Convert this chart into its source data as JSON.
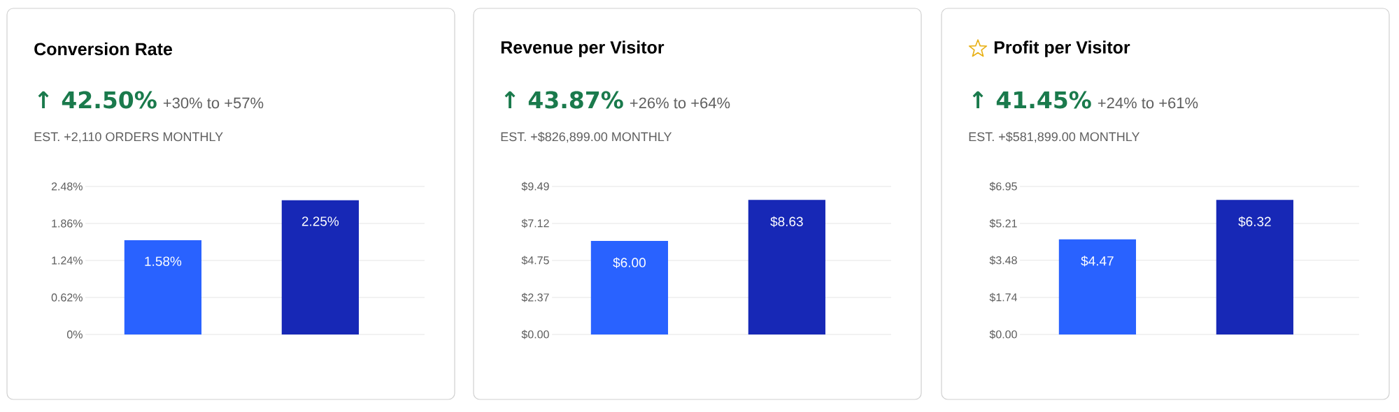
{
  "chart_data": [
    {
      "type": "bar",
      "title": "Conversion Rate",
      "subtitle": "↑ 42.50%",
      "annotations": [
        "+30% to +57%",
        "EST. +2,110 ORDERS MONTHLY"
      ],
      "categories": [
        null,
        null
      ],
      "values": [
        1.58,
        2.25
      ],
      "value_labels": [
        "1.58%",
        "2.25%"
      ],
      "colors": [
        "#2962ff",
        "#1728b6"
      ],
      "ylim": [
        0,
        2.48
      ],
      "yticks": [
        {
          "value": 0,
          "label": "0%"
        },
        {
          "value": 0.62,
          "label": "0.62%"
        },
        {
          "value": 1.24,
          "label": "1.24%"
        },
        {
          "value": 1.86,
          "label": "1.86%"
        },
        {
          "value": 2.48,
          "label": "2.48%"
        }
      ],
      "grid": "y",
      "tick_labels": "y"
    },
    {
      "type": "bar",
      "title": "Revenue per Visitor",
      "subtitle": "↑ 43.87%",
      "annotations": [
        "+26% to +64%",
        "EST. +$826,899.00 MONTHLY"
      ],
      "categories": [
        null,
        null
      ],
      "values": [
        6.0,
        8.63
      ],
      "value_labels": [
        "$6.00",
        "$8.63"
      ],
      "colors": [
        "#2962ff",
        "#1728b6"
      ],
      "ylim": [
        0,
        9.49
      ],
      "yticks": [
        {
          "value": 0,
          "label": "$0.00"
        },
        {
          "value": 2.37,
          "label": "$2.37"
        },
        {
          "value": 4.75,
          "label": "$4.75"
        },
        {
          "value": 7.12,
          "label": "$7.12"
        },
        {
          "value": 9.49,
          "label": "$9.49"
        }
      ],
      "grid": "y",
      "tick_labels": "y"
    },
    {
      "type": "bar",
      "title": "Profit per Visitor",
      "subtitle": "↑ 41.45%",
      "annotations": [
        "+24% to +61%",
        "EST. +$581,899.00 MONTHLY"
      ],
      "categories": [
        null,
        null
      ],
      "values": [
        4.47,
        6.32
      ],
      "value_labels": [
        "$4.47",
        "$6.32"
      ],
      "colors": [
        "#2962ff",
        "#1728b6"
      ],
      "ylim": [
        0,
        6.95
      ],
      "yticks": [
        {
          "value": 0,
          "label": "$0.00"
        },
        {
          "value": 1.74,
          "label": "$1.74"
        },
        {
          "value": 3.48,
          "label": "$3.48"
        },
        {
          "value": 5.21,
          "label": "$5.21"
        },
        {
          "value": 6.95,
          "label": "$6.95"
        }
      ],
      "grid": "y",
      "tick_labels": "y"
    }
  ]
}
